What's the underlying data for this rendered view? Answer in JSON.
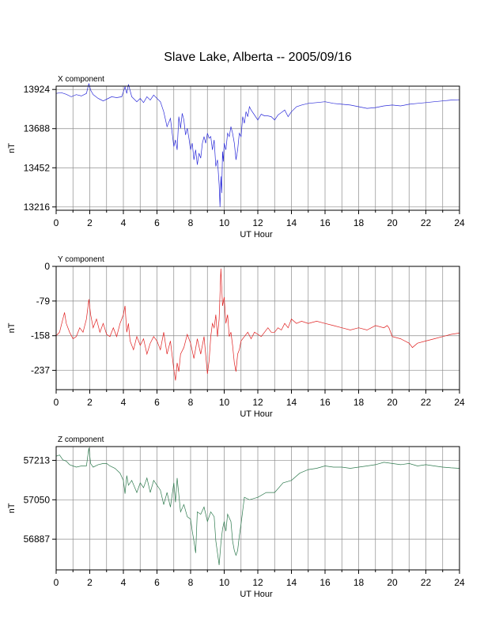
{
  "title": "Slave Lake, Alberta -- 2005/09/16",
  "colors": {
    "x": "#2b2bd9",
    "y": "#e02020",
    "z": "#2e7a4e",
    "grid": "#8c8c8c"
  },
  "chart_data": [
    {
      "type": "line",
      "title": "X component",
      "xlabel": "UT Hour",
      "ylabel": "nT",
      "xlim": [
        0,
        24
      ],
      "ylim": [
        13196,
        13944
      ],
      "xticks": [
        "0",
        "2",
        "4",
        "6",
        "8",
        "10",
        "12",
        "14",
        "16",
        "18",
        "20",
        "22",
        "24"
      ],
      "yticks": [
        "13924",
        "13688",
        "13452",
        "13216"
      ],
      "color": "#2b2bd9",
      "series": [
        {
          "x": [
            0,
            0.3,
            0.6,
            0.9,
            1.2,
            1.5,
            1.8,
            1.95,
            2.05,
            2.2,
            2.5,
            2.8,
            3.1,
            3.3,
            3.6,
            3.9,
            4.1,
            4.2,
            4.3,
            4.5,
            4.8,
            5.0,
            5.2,
            5.4,
            5.6,
            5.8,
            6.0,
            6.2,
            6.4,
            6.6,
            6.8,
            7.0,
            7.1,
            7.2,
            7.3,
            7.4,
            7.5,
            7.6,
            7.7,
            7.8,
            7.9,
            8.0,
            8.1,
            8.2,
            8.3,
            8.4,
            8.5,
            8.6,
            8.7,
            8.8,
            8.9,
            9.0,
            9.1,
            9.2,
            9.3,
            9.4,
            9.5,
            9.6,
            9.7,
            9.75,
            9.8,
            9.85,
            9.9,
            9.95,
            10.0,
            10.1,
            10.2,
            10.3,
            10.4,
            10.5,
            10.6,
            10.7,
            10.8,
            10.9,
            11.0,
            11.1,
            11.2,
            11.3,
            11.4,
            11.5,
            11.6,
            11.8,
            12.0,
            12.2,
            12.4,
            12.6,
            12.8,
            13.0,
            13.2,
            13.4,
            13.6,
            13.8,
            14.0,
            14.3,
            14.6,
            15.0,
            15.5,
            16.0,
            16.5,
            17.0,
            17.5,
            18.0,
            18.5,
            19.0,
            19.5,
            20.0,
            20.5,
            21.0,
            21.5,
            22.0,
            22.5,
            23.0,
            23.5,
            24.0
          ],
          "y": [
            13900,
            13905,
            13895,
            13880,
            13893,
            13885,
            13900,
            13960,
            13920,
            13893,
            13870,
            13855,
            13870,
            13880,
            13875,
            13880,
            13940,
            13900,
            13955,
            13880,
            13850,
            13870,
            13845,
            13880,
            13860,
            13890,
            13870,
            13850,
            13790,
            13700,
            13750,
            13580,
            13620,
            13560,
            13760,
            13690,
            13780,
            13740,
            13650,
            13690,
            13630,
            13560,
            13600,
            13500,
            13560,
            13470,
            13540,
            13510,
            13600,
            13640,
            13600,
            13660,
            13630,
            13640,
            13560,
            13620,
            13460,
            13500,
            13350,
            13216,
            13400,
            13300,
            13550,
            13490,
            13600,
            13560,
            13660,
            13640,
            13700,
            13660,
            13600,
            13500,
            13560,
            13660,
            13640,
            13760,
            13720,
            13790,
            13760,
            13820,
            13800,
            13770,
            13740,
            13775,
            13765,
            13765,
            13760,
            13740,
            13770,
            13785,
            13800,
            13760,
            13790,
            13820,
            13830,
            13840,
            13845,
            13850,
            13840,
            13835,
            13830,
            13820,
            13810,
            13815,
            13825,
            13830,
            13825,
            13835,
            13840,
            13845,
            13850,
            13855,
            13860,
            13862
          ]
        }
      ]
    },
    {
      "type": "line",
      "title": "Y component",
      "xlabel": "UT Hour",
      "ylabel": "nT",
      "xlim": [
        0,
        24
      ],
      "ylim": [
        -281,
        0
      ],
      "xticks": [
        "0",
        "2",
        "4",
        "6",
        "8",
        "10",
        "12",
        "14",
        "16",
        "18",
        "20",
        "22",
        "24"
      ],
      "yticks": [
        "0",
        "-79",
        "-158",
        "-237"
      ],
      "color": "#e02020",
      "series": [
        {
          "x": [
            0,
            0.2,
            0.4,
            0.5,
            0.6,
            0.8,
            1.0,
            1.2,
            1.4,
            1.6,
            1.8,
            1.95,
            2.05,
            2.2,
            2.4,
            2.6,
            2.8,
            3.0,
            3.2,
            3.4,
            3.6,
            3.8,
            4.0,
            4.1,
            4.2,
            4.3,
            4.4,
            4.6,
            4.8,
            5.0,
            5.2,
            5.4,
            5.6,
            5.8,
            6.0,
            6.2,
            6.4,
            6.6,
            6.8,
            7.0,
            7.1,
            7.2,
            7.3,
            7.4,
            7.6,
            7.8,
            8.0,
            8.2,
            8.4,
            8.6,
            8.8,
            9.0,
            9.1,
            9.2,
            9.3,
            9.4,
            9.5,
            9.6,
            9.7,
            9.8,
            9.9,
            10.0,
            10.1,
            10.2,
            10.3,
            10.4,
            10.5,
            10.6,
            10.7,
            10.8,
            10.9,
            11.0,
            11.2,
            11.4,
            11.6,
            11.8,
            12.0,
            12.2,
            12.4,
            12.6,
            12.8,
            13.0,
            13.2,
            13.4,
            13.6,
            13.8,
            14.0,
            14.3,
            14.6,
            15.0,
            15.5,
            16.0,
            16.5,
            17.0,
            17.5,
            18.0,
            18.5,
            19.0,
            19.5,
            19.7,
            19.8,
            20.0,
            20.5,
            21.0,
            21.2,
            21.5,
            22.0,
            22.5,
            23.0,
            23.5,
            24.0
          ],
          "y": [
            -158,
            -150,
            -120,
            -105,
            -130,
            -150,
            -165,
            -160,
            -140,
            -150,
            -120,
            -75,
            -110,
            -140,
            -120,
            -150,
            -130,
            -155,
            -160,
            -140,
            -160,
            -130,
            -110,
            -90,
            -150,
            -130,
            -170,
            -190,
            -160,
            -180,
            -165,
            -200,
            -175,
            -160,
            -170,
            -190,
            -150,
            -200,
            -170,
            -235,
            -260,
            -220,
            -240,
            -200,
            -185,
            -155,
            -175,
            -210,
            -165,
            -200,
            -160,
            -245,
            -215,
            -160,
            -130,
            -140,
            -110,
            -160,
            -120,
            -5,
            -90,
            -70,
            -130,
            -110,
            -160,
            -150,
            -180,
            -220,
            -240,
            -200,
            -190,
            -170,
            -160,
            -150,
            -165,
            -150,
            -155,
            -160,
            -150,
            -140,
            -150,
            -150,
            -140,
            -145,
            -130,
            -140,
            -120,
            -130,
            -125,
            -130,
            -125,
            -130,
            -135,
            -140,
            -145,
            -140,
            -145,
            -135,
            -140,
            -135,
            -140,
            -160,
            -165,
            -175,
            -185,
            -175,
            -170,
            -165,
            -160,
            -155,
            -152
          ]
        }
      ]
    },
    {
      "type": "line",
      "title": "Z component",
      "xlabel": "UT Hour",
      "ylabel": "nT",
      "xlim": [
        0,
        24
      ],
      "ylim": [
        56760,
        57270
      ],
      "xticks": [
        "0",
        "2",
        "4",
        "6",
        "8",
        "10",
        "12",
        "14",
        "16",
        "18",
        "20",
        "22",
        "24"
      ],
      "yticks": [
        "57213",
        "57050",
        "56887"
      ],
      "color": "#2e7a4e",
      "series": [
        {
          "x": [
            0,
            0.2,
            0.4,
            0.6,
            0.8,
            1.0,
            1.2,
            1.5,
            1.8,
            1.95,
            2.05,
            2.2,
            2.5,
            2.8,
            3.0,
            3.2,
            3.5,
            3.8,
            4.0,
            4.1,
            4.2,
            4.3,
            4.5,
            4.8,
            5.0,
            5.2,
            5.4,
            5.6,
            5.8,
            6.0,
            6.2,
            6.4,
            6.6,
            6.8,
            7.0,
            7.1,
            7.2,
            7.4,
            7.6,
            7.8,
            8.0,
            8.1,
            8.2,
            8.3,
            8.4,
            8.6,
            8.8,
            9.0,
            9.2,
            9.4,
            9.5,
            9.6,
            9.7,
            9.8,
            9.9,
            10.0,
            10.1,
            10.2,
            10.4,
            10.5,
            10.6,
            10.7,
            10.8,
            10.9,
            11.0,
            11.2,
            11.5,
            12.0,
            12.5,
            13.0,
            13.5,
            14.0,
            14.5,
            15.0,
            15.5,
            16.0,
            16.5,
            17.0,
            17.5,
            18.0,
            18.5,
            19.0,
            19.5,
            20.0,
            20.5,
            21.0,
            21.5,
            22.0,
            22.5,
            23.0,
            23.5,
            24.0
          ],
          "y": [
            57230,
            57235,
            57215,
            57210,
            57195,
            57190,
            57185,
            57190,
            57190,
            57265,
            57200,
            57185,
            57195,
            57200,
            57200,
            57190,
            57180,
            57160,
            57130,
            57075,
            57150,
            57110,
            57130,
            57080,
            57120,
            57100,
            57140,
            57080,
            57130,
            57110,
            57090,
            57030,
            57080,
            57020,
            57120,
            57040,
            57140,
            57000,
            57030,
            56980,
            56970,
            56920,
            56880,
            56830,
            57000,
            56990,
            57020,
            56960,
            57000,
            56980,
            56880,
            56830,
            56780,
            56870,
            56930,
            56960,
            56920,
            56990,
            56960,
            56880,
            56840,
            56820,
            56840,
            56900,
            56950,
            57060,
            57050,
            57060,
            57080,
            57080,
            57120,
            57130,
            57160,
            57175,
            57180,
            57190,
            57185,
            57185,
            57180,
            57185,
            57190,
            57195,
            57205,
            57200,
            57195,
            57200,
            57190,
            57195,
            57190,
            57185,
            57182,
            57180
          ]
        }
      ]
    }
  ]
}
